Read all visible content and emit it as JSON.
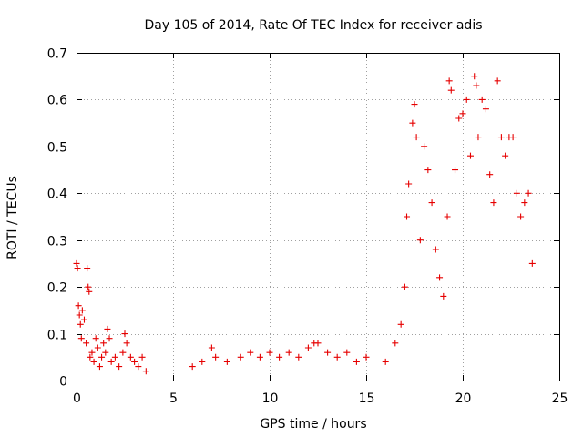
{
  "chart_data": {
    "type": "scatter",
    "title": "Day 105 of 2014, Rate Of TEC Index for receiver adis",
    "xlabel": "GPS time / hours",
    "ylabel": "ROTI / TECUs",
    "xlim": [
      0,
      25
    ],
    "ylim": [
      0,
      0.7
    ],
    "xticks": [
      0,
      5,
      10,
      15,
      20,
      25
    ],
    "yticks": [
      0,
      0.1,
      0.2,
      0.3,
      0.4,
      0.5,
      0.6,
      0.7
    ],
    "xtick_labels": [
      "0",
      "5",
      "10",
      "15",
      "20",
      "25"
    ],
    "ytick_labels": [
      "0",
      "0.1",
      "0.2",
      "0.3",
      "0.4",
      "0.5",
      "0.6",
      "0.7"
    ],
    "grid": true,
    "marker": "+",
    "color": "#e60000",
    "series": [
      {
        "name": "ROTI",
        "points": [
          [
            0.0,
            0.25
          ],
          [
            0.05,
            0.24
          ],
          [
            0.1,
            0.16
          ],
          [
            0.15,
            0.14
          ],
          [
            0.2,
            0.12
          ],
          [
            0.25,
            0.09
          ],
          [
            0.3,
            0.15
          ],
          [
            0.4,
            0.13
          ],
          [
            0.5,
            0.08
          ],
          [
            0.55,
            0.24
          ],
          [
            0.6,
            0.2
          ],
          [
            0.65,
            0.19
          ],
          [
            0.7,
            0.05
          ],
          [
            0.8,
            0.06
          ],
          [
            0.9,
            0.04
          ],
          [
            1.0,
            0.09
          ],
          [
            1.1,
            0.07
          ],
          [
            1.2,
            0.03
          ],
          [
            1.3,
            0.05
          ],
          [
            1.4,
            0.08
          ],
          [
            1.5,
            0.06
          ],
          [
            1.6,
            0.11
          ],
          [
            1.7,
            0.09
          ],
          [
            1.8,
            0.04
          ],
          [
            2.0,
            0.05
          ],
          [
            2.2,
            0.03
          ],
          [
            2.4,
            0.06
          ],
          [
            2.5,
            0.1
          ],
          [
            2.6,
            0.08
          ],
          [
            2.8,
            0.05
          ],
          [
            3.0,
            0.04
          ],
          [
            3.2,
            0.03
          ],
          [
            3.4,
            0.05
          ],
          [
            3.6,
            0.02
          ],
          [
            6.0,
            0.03
          ],
          [
            6.5,
            0.04
          ],
          [
            7.0,
            0.07
          ],
          [
            7.2,
            0.05
          ],
          [
            7.8,
            0.04
          ],
          [
            8.5,
            0.05
          ],
          [
            9.0,
            0.06
          ],
          [
            9.5,
            0.05
          ],
          [
            10.0,
            0.06
          ],
          [
            10.5,
            0.05
          ],
          [
            11.0,
            0.06
          ],
          [
            11.5,
            0.05
          ],
          [
            12.0,
            0.07
          ],
          [
            12.3,
            0.08
          ],
          [
            12.5,
            0.08
          ],
          [
            13.0,
            0.06
          ],
          [
            13.5,
            0.05
          ],
          [
            14.0,
            0.06
          ],
          [
            14.5,
            0.04
          ],
          [
            15.0,
            0.05
          ],
          [
            16.0,
            0.04
          ],
          [
            16.5,
            0.08
          ],
          [
            16.8,
            0.12
          ],
          [
            17.0,
            0.2
          ],
          [
            17.1,
            0.35
          ],
          [
            17.2,
            0.42
          ],
          [
            17.4,
            0.55
          ],
          [
            17.5,
            0.59
          ],
          [
            17.6,
            0.52
          ],
          [
            17.8,
            0.3
          ],
          [
            18.0,
            0.5
          ],
          [
            18.2,
            0.45
          ],
          [
            18.4,
            0.38
          ],
          [
            18.6,
            0.28
          ],
          [
            18.8,
            0.22
          ],
          [
            19.0,
            0.18
          ],
          [
            19.2,
            0.35
          ],
          [
            19.3,
            0.64
          ],
          [
            19.4,
            0.62
          ],
          [
            19.6,
            0.45
          ],
          [
            19.8,
            0.56
          ],
          [
            20.0,
            0.57
          ],
          [
            20.2,
            0.6
          ],
          [
            20.4,
            0.48
          ],
          [
            20.6,
            0.65
          ],
          [
            20.7,
            0.63
          ],
          [
            20.8,
            0.52
          ],
          [
            21.0,
            0.6
          ],
          [
            21.2,
            0.58
          ],
          [
            21.4,
            0.44
          ],
          [
            21.6,
            0.38
          ],
          [
            21.8,
            0.64
          ],
          [
            22.0,
            0.52
          ],
          [
            22.2,
            0.48
          ],
          [
            22.4,
            0.52
          ],
          [
            22.6,
            0.52
          ],
          [
            22.8,
            0.4
          ],
          [
            23.0,
            0.35
          ],
          [
            23.2,
            0.38
          ],
          [
            23.4,
            0.4
          ],
          [
            23.6,
            0.25
          ]
        ]
      }
    ]
  }
}
